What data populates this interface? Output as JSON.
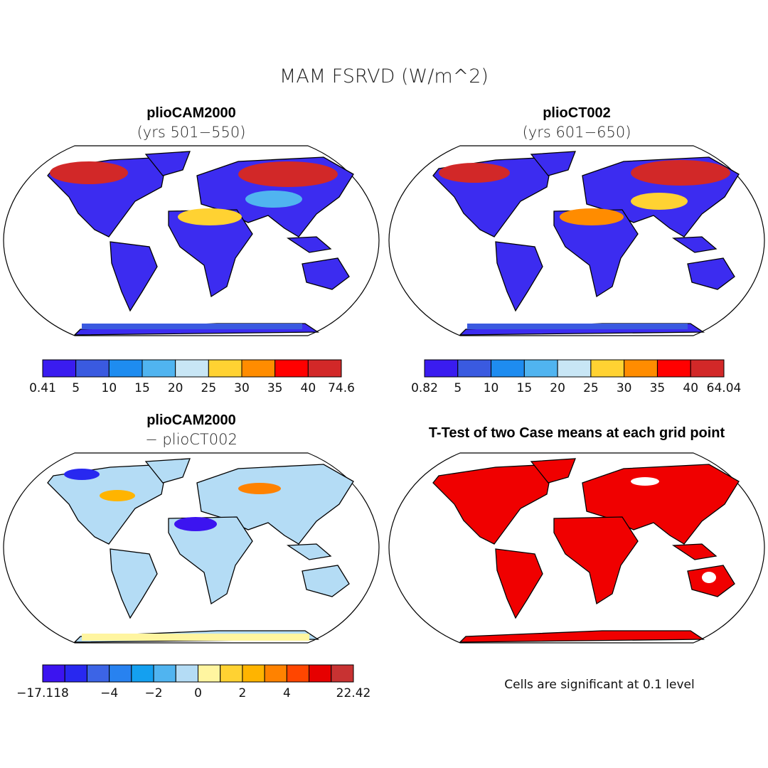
{
  "title": "MAM FSRVD (W/m^2)",
  "panels": [
    {
      "title": "plioCAM2000",
      "subtitle": "(yrs 501−550)",
      "colorbar": {
        "colors": [
          "#3a1cf0",
          "#3a5ae0",
          "#1e8cf0",
          "#50b4f0",
          "#c8e6f5",
          "#ffd232",
          "#ff8c00",
          "#ff0000",
          "#d22828"
        ],
        "labels": [
          "0.41",
          "5",
          "10",
          "15",
          "20",
          "25",
          "30",
          "35",
          "40",
          "74.6"
        ]
      }
    },
    {
      "title": "plioCT002",
      "subtitle": "(yrs 601−650)",
      "colorbar": {
        "colors": [
          "#3a1cf0",
          "#3a5ae0",
          "#1e8cf0",
          "#50b4f0",
          "#c8e6f5",
          "#ffd232",
          "#ff8c00",
          "#ff0000",
          "#d22828"
        ],
        "labels": [
          "0.82",
          "5",
          "10",
          "15",
          "20",
          "25",
          "30",
          "35",
          "40",
          "64.04"
        ]
      }
    },
    {
      "title": "plioCAM2000",
      "subtitle": "− plioCT002",
      "colorbar": {
        "colors": [
          "#3c14f0",
          "#2828f0",
          "#3c64e6",
          "#2882f0",
          "#14a0f0",
          "#50b4f0",
          "#b4dcf5",
          "#fff5a0",
          "#ffd232",
          "#ffb400",
          "#ff8200",
          "#ff4600",
          "#e60000",
          "#c83232"
        ],
        "labels": [
          "−17.118",
          null,
          null,
          "−4",
          null,
          "−2",
          null,
          "0",
          null,
          "2",
          null,
          "4",
          null,
          null,
          "22.42"
        ]
      }
    },
    {
      "title": "T-Test of two Case means at each grid point"
    }
  ],
  "footnote": "Cells are significant at 0.1 level"
}
